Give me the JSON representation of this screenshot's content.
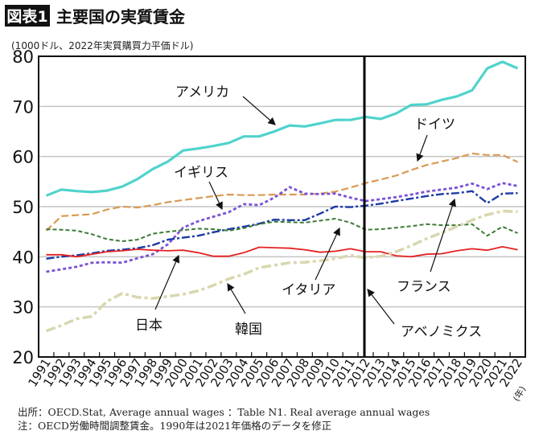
{
  "header": {
    "figure_tag": "図表1",
    "title": "主要国の実質賃金"
  },
  "chart_data": {
    "type": "line",
    "title": "主要国の実質賃金",
    "ylabel": "(1000ドル、2022年実質購買力平価ドル)",
    "xlabel": "(年)",
    "ylim": [
      20,
      80
    ],
    "yticks": [
      20,
      30,
      40,
      50,
      60,
      70,
      80
    ],
    "grid": "horizontal",
    "x": [
      "1991",
      "1992",
      "1993",
      "1994",
      "1995",
      "1996",
      "1997",
      "1998",
      "1999",
      "2000",
      "2001",
      "2002",
      "2003",
      "2004",
      "2005",
      "2006",
      "2007",
      "2008",
      "2009",
      "2010",
      "2011",
      "2012",
      "2013",
      "2014",
      "2015",
      "2016",
      "2017",
      "2018",
      "2019",
      "2020",
      "2021",
      "2022"
    ],
    "series": [
      {
        "name": "アメリカ",
        "color": "#4fd3cc",
        "style": "solid",
        "values": [
          52.2,
          53.4,
          53.1,
          52.9,
          53.2,
          54.0,
          55.5,
          57.5,
          59.0,
          61.2,
          61.6,
          62.1,
          62.7,
          64.0,
          64.0,
          65.0,
          66.2,
          66.0,
          66.6,
          67.3,
          67.3,
          67.9,
          67.5,
          68.6,
          70.3,
          70.4,
          71.3,
          72.0,
          73.2,
          77.6,
          78.9,
          77.6
        ]
      },
      {
        "name": "ドイツ",
        "color": "#d99b55",
        "style": "dashed",
        "values": [
          45.2,
          48.1,
          48.3,
          48.5,
          49.4,
          50.0,
          49.8,
          50.3,
          50.9,
          51.3,
          51.7,
          52.1,
          52.4,
          52.3,
          52.3,
          52.4,
          52.4,
          52.4,
          52.6,
          53.0,
          53.8,
          54.7,
          55.4,
          56.2,
          57.3,
          58.3,
          59.0,
          59.7,
          60.6,
          60.3,
          60.3,
          58.9
        ]
      },
      {
        "name": "イギリス",
        "color": "#7b52d6",
        "style": "dotted",
        "values": [
          37.0,
          37.5,
          38.0,
          38.8,
          38.9,
          38.8,
          39.7,
          40.5,
          42.5,
          45.8,
          47.1,
          48.0,
          48.9,
          50.5,
          50.3,
          51.8,
          53.9,
          52.6,
          52.5,
          52.6,
          51.8,
          51.1,
          51.5,
          51.9,
          52.4,
          53.0,
          53.4,
          53.8,
          54.6,
          53.5,
          54.7,
          54.1
        ]
      },
      {
        "name": "フランス",
        "color": "#1c3aa6",
        "style": "dashdot",
        "values": [
          39.6,
          40.0,
          40.3,
          40.7,
          41.2,
          41.4,
          41.7,
          42.3,
          43.4,
          43.8,
          44.2,
          44.9,
          45.5,
          46.0,
          46.6,
          47.4,
          47.3,
          47.3,
          48.6,
          50.0,
          49.9,
          50.2,
          50.6,
          51.1,
          51.6,
          52.1,
          52.5,
          52.7,
          53.1,
          50.7,
          52.6,
          52.7
        ]
      },
      {
        "name": "イタリア",
        "color": "#3c7a36",
        "style": "dashed-short",
        "values": [
          45.5,
          45.4,
          45.2,
          44.5,
          43.5,
          43.1,
          43.4,
          44.6,
          45.0,
          45.3,
          45.6,
          45.5,
          45.2,
          45.7,
          46.5,
          47.0,
          46.9,
          46.8,
          47.2,
          47.6,
          46.8,
          45.4,
          45.5,
          45.8,
          46.1,
          46.5,
          46.3,
          46.3,
          46.5,
          44.2,
          46.0,
          44.7
        ]
      },
      {
        "name": "日本",
        "color": "#e52222",
        "style": "solid",
        "values": [
          40.4,
          40.4,
          40.0,
          40.5,
          41.0,
          41.2,
          41.5,
          41.3,
          41.2,
          41.3,
          40.8,
          40.1,
          40.1,
          40.8,
          41.9,
          41.8,
          41.7,
          41.4,
          40.9,
          41.1,
          41.6,
          41.0,
          41.0,
          40.2,
          40.0,
          40.5,
          40.6,
          41.2,
          41.6,
          41.3,
          42.0,
          41.4
        ]
      },
      {
        "name": "韓国",
        "color": "#d9d7ae",
        "style": "dashdot-thick",
        "values": [
          25.2,
          26.3,
          27.6,
          28.1,
          31.1,
          32.7,
          31.9,
          31.7,
          32.1,
          32.5,
          33.2,
          34.3,
          35.6,
          36.5,
          37.8,
          38.3,
          38.8,
          38.9,
          39.2,
          39.6,
          40.3,
          39.8,
          40.1,
          41.0,
          42.2,
          43.6,
          44.8,
          46.0,
          47.3,
          48.4,
          49.1,
          49.0
        ]
      }
    ],
    "annotations": [
      {
        "text": "アベノミクス",
        "type": "vertical-line",
        "x": "2012"
      }
    ]
  },
  "footer": {
    "source": "出所：OECD.Stat, Average annual wages ：Table N1. Real average annual wages",
    "note": "注：OECD労働時間調整賃金。1990年は2021年価格のデータを修正"
  }
}
